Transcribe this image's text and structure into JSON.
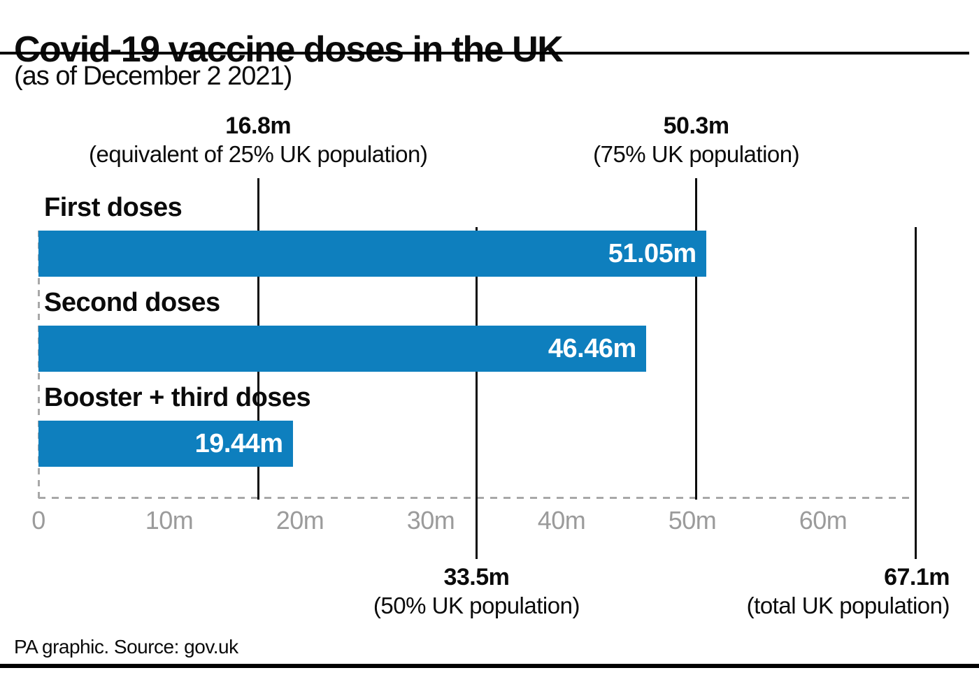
{
  "header": {
    "title": "Covid-19 vaccine doses in the UK",
    "subtitle": "(as of December 2 2021)"
  },
  "footer": {
    "source": "PA graphic. Source: gov.uk"
  },
  "chart_data": {
    "type": "bar",
    "orientation": "horizontal",
    "title": "Covid-19 vaccine doses in the UK",
    "subtitle": "(as of December 2 2021)",
    "unit": "million doses",
    "categories": [
      "First doses",
      "Second doses",
      "Booster + third doses"
    ],
    "values": [
      51.05,
      46.46,
      19.44
    ],
    "value_labels": [
      "51.05m",
      "46.46m",
      "19.44m"
    ],
    "bar_color": "#0e7fbe",
    "value_text_color": "#ffffff",
    "axis_label_color": "#9b9b9b",
    "xlim": [
      0,
      67.1
    ],
    "grid": false,
    "legend": false,
    "x_ticks": [
      {
        "value": 0,
        "label": "0"
      },
      {
        "value": 10,
        "label": "10m"
      },
      {
        "value": 20,
        "label": "20m"
      },
      {
        "value": 30,
        "label": "30m"
      },
      {
        "value": 40,
        "label": "40m"
      },
      {
        "value": 50,
        "label": "50m"
      },
      {
        "value": 60,
        "label": "60m"
      }
    ],
    "reference_lines": [
      {
        "value": 16.8,
        "label": "16.8m",
        "sublabel": "(equivalent of 25% UK population)",
        "position": "top"
      },
      {
        "value": 50.3,
        "label": "50.3m",
        "sublabel": "(75% UK population)",
        "position": "top"
      },
      {
        "value": 33.5,
        "label": "33.5m",
        "sublabel": "(50% UK population)",
        "position": "bottom"
      },
      {
        "value": 67.1,
        "label": "67.1m",
        "sublabel": "(total UK population)",
        "position": "bottom"
      }
    ]
  }
}
